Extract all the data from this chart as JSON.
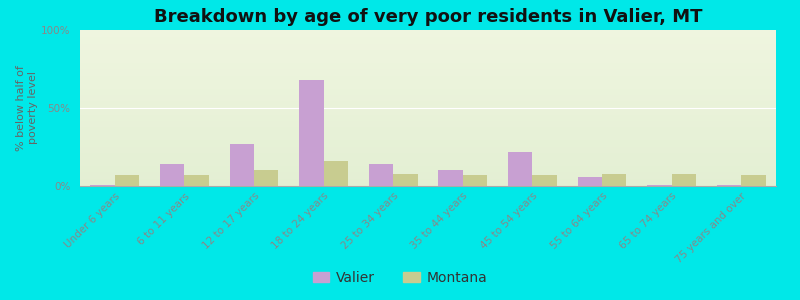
{
  "title": "Breakdown by age of very poor residents in Valier, MT",
  "ylabel": "% below half of\npoverty level",
  "categories": [
    "Under 6 years",
    "6 to 11 years",
    "12 to 17 years",
    "18 to 24 years",
    "25 to 34 years",
    "35 to 44 years",
    "45 to 54 years",
    "55 to 64 years",
    "65 to 74 years",
    "75 years and over"
  ],
  "valier_values": [
    0.5,
    14,
    27,
    68,
    14,
    10,
    22,
    6,
    0.5,
    0.5
  ],
  "montana_values": [
    7,
    7,
    10,
    16,
    8,
    7,
    7,
    8,
    8,
    7
  ],
  "valier_color": "#c8a0d2",
  "montana_color": "#c8cc90",
  "outer_bg": "#00e8e8",
  "plot_bg_top": "#d8e8c8",
  "plot_bg_bottom": "#f0f5e0",
  "ylim": [
    0,
    100
  ],
  "yticks": [
    0,
    50,
    100
  ],
  "ytick_labels": [
    "0%",
    "50%",
    "100%"
  ],
  "title_fontsize": 13,
  "axis_fontsize": 8,
  "tick_fontsize": 7.5,
  "legend_fontsize": 10,
  "bar_width": 0.35
}
